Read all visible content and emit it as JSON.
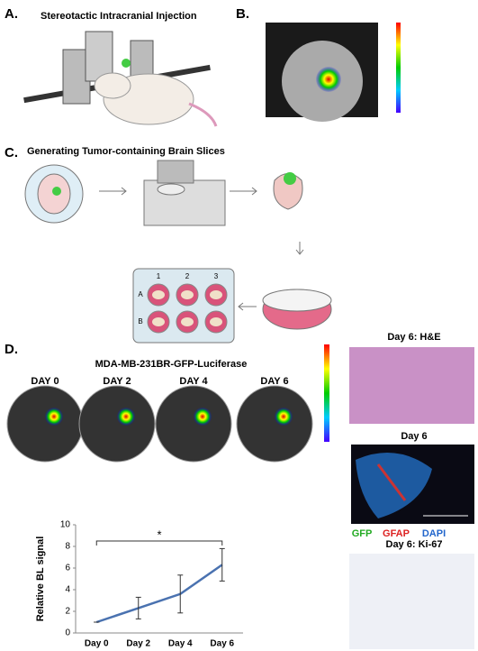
{
  "panels": {
    "a": {
      "label": "A.",
      "title": "Stereotactic Intracranial Injection"
    },
    "b": {
      "label": "B."
    },
    "c": {
      "label": "C.",
      "title": "Generating Tumor-containing Brain Slices",
      "plate_columns": [
        "1",
        "2",
        "3"
      ],
      "plate_rows": [
        "A",
        "B"
      ]
    },
    "d": {
      "label": "D.",
      "title": "MDA-MB-231BR-GFP-Luciferase",
      "days": [
        "DAY 0",
        "DAY 2",
        "DAY 4",
        "DAY 6"
      ],
      "he_title": "Day 6: H&E",
      "if_title": "Day 6",
      "stains": [
        "GFP",
        "GFAP",
        "DAPI"
      ],
      "ki67_title": "Day 6: Ki-67"
    }
  },
  "chart_data": {
    "type": "line",
    "y_label": "Relative BL signal",
    "categories": [
      "Day 0",
      "Day 2",
      "Day 4",
      "Day 6"
    ],
    "series": [
      {
        "color": "#4a72b0",
        "values": [
          1,
          2.3,
          3.6,
          6.3
        ],
        "errors": [
          0,
          1.0,
          1.75,
          1.5
        ]
      }
    ],
    "ylim": [
      0,
      10
    ],
    "yticks": [
      0,
      2,
      4,
      6,
      8,
      10
    ],
    "annotation": "*"
  }
}
